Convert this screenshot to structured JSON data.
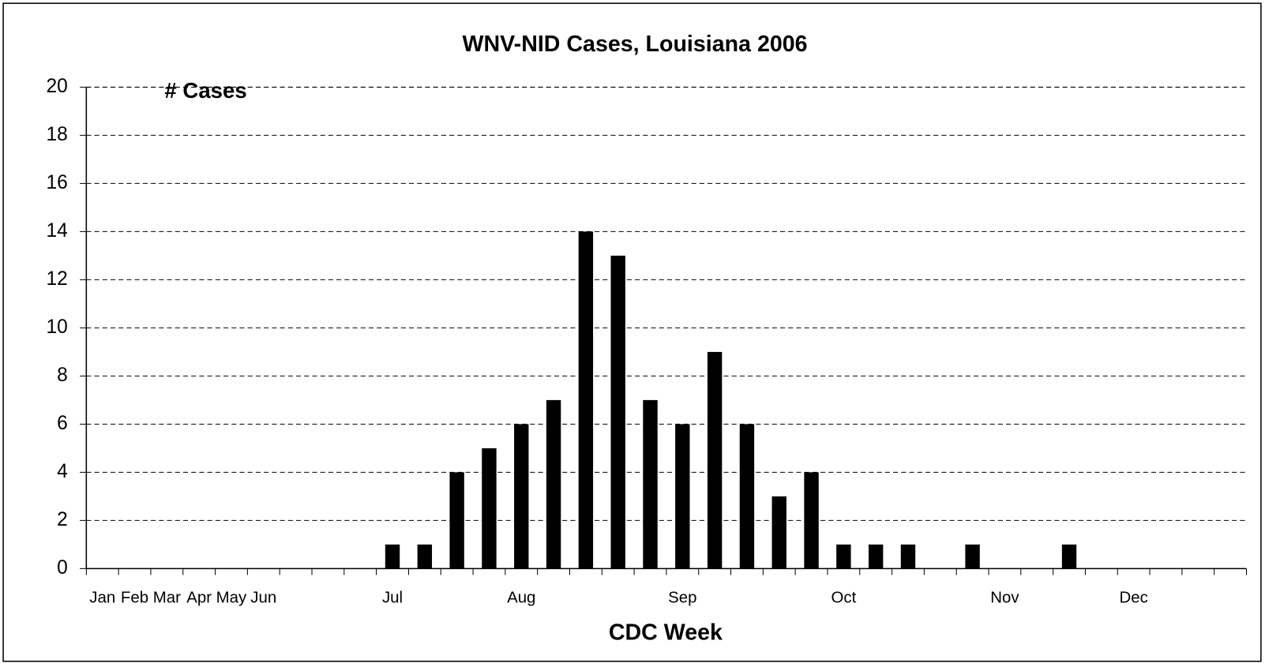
{
  "chart_data": {
    "type": "bar",
    "title": "WNV-NID Cases, Louisiana 2006",
    "annotation": "# Cases",
    "x_label": "CDC Week",
    "categories": [
      "Jan",
      "Feb",
      "Mar",
      "Apr",
      "May",
      "Jun",
      null,
      null,
      null,
      "Jul",
      null,
      null,
      null,
      "Aug",
      null,
      null,
      null,
      null,
      "Sep",
      null,
      null,
      null,
      null,
      "Oct",
      null,
      null,
      null,
      null,
      "Nov",
      null,
      null,
      null,
      "Dec",
      null,
      null,
      null
    ],
    "values": [
      0,
      0,
      0,
      0,
      0,
      0,
      0,
      0,
      0,
      1,
      1,
      4,
      5,
      6,
      7,
      14,
      13,
      7,
      6,
      9,
      6,
      3,
      4,
      1,
      1,
      1,
      0,
      1,
      0,
      0,
      1,
      0,
      0,
      0,
      0,
      0
    ],
    "color": "#000000",
    "ylim": [
      0,
      20
    ],
    "yticks": [
      0,
      2,
      4,
      6,
      8,
      10,
      12,
      14,
      16,
      18,
      20
    ],
    "grid": true
  }
}
